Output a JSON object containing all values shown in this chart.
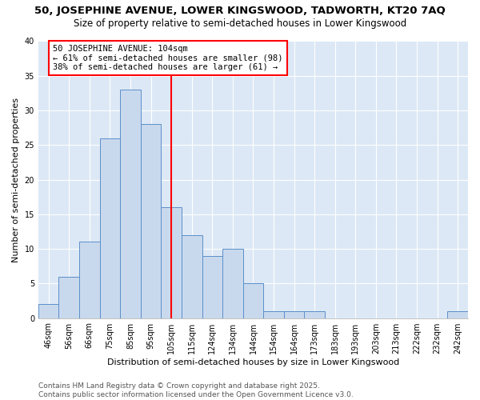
{
  "title": "50, JOSEPHINE AVENUE, LOWER KINGSWOOD, TADWORTH, KT20 7AQ",
  "subtitle": "Size of property relative to semi-detached houses in Lower Kingswood",
  "xlabel": "Distribution of semi-detached houses by size in Lower Kingswood",
  "ylabel": "Number of semi-detached properties",
  "categories": [
    "46sqm",
    "56sqm",
    "66sqm",
    "75sqm",
    "85sqm",
    "95sqm",
    "105sqm",
    "115sqm",
    "124sqm",
    "134sqm",
    "144sqm",
    "154sqm",
    "164sqm",
    "173sqm",
    "183sqm",
    "193sqm",
    "203sqm",
    "213sqm",
    "222sqm",
    "232sqm",
    "242sqm"
  ],
  "values": [
    2,
    6,
    11,
    26,
    33,
    28,
    16,
    12,
    9,
    10,
    5,
    1,
    1,
    1,
    0,
    0,
    0,
    0,
    0,
    0,
    1
  ],
  "bar_color": "#c9d9ed",
  "bar_edge_color": "#5b8fc9",
  "vline_index": 6,
  "vline_color": "red",
  "annotation_line1": "50 JOSEPHINE AVENUE: 104sqm",
  "annotation_line2": "← 61% of semi-detached houses are smaller (98)",
  "annotation_line3": "38% of semi-detached houses are larger (61) →",
  "ylim": [
    0,
    40
  ],
  "yticks": [
    0,
    5,
    10,
    15,
    20,
    25,
    30,
    35,
    40
  ],
  "bg_color": "#dce8f5",
  "footer": "Contains HM Land Registry data © Crown copyright and database right 2025.\nContains public sector information licensed under the Open Government Licence v3.0.",
  "title_fontsize": 9.5,
  "subtitle_fontsize": 8.5,
  "xlabel_fontsize": 8,
  "ylabel_fontsize": 8,
  "tick_fontsize": 7,
  "annotation_fontsize": 7.5,
  "footer_fontsize": 6.5
}
